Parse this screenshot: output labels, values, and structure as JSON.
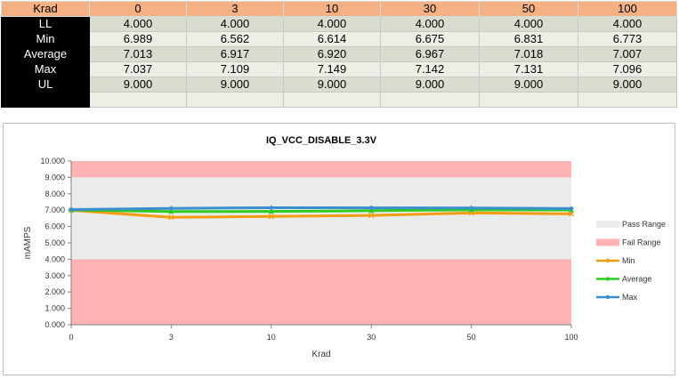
{
  "table": {
    "header_label": "Krad",
    "columns": [
      "0",
      "3",
      "10",
      "30",
      "50",
      "100"
    ],
    "rows": [
      {
        "label": "LL",
        "values": [
          "4.000",
          "4.000",
          "4.000",
          "4.000",
          "4.000",
          "4.000"
        ]
      },
      {
        "label": "Min",
        "values": [
          "6.989",
          "6.562",
          "6.614",
          "6.675",
          "6.831",
          "6.773"
        ]
      },
      {
        "label": "Average",
        "values": [
          "7.013",
          "6.917",
          "6.920",
          "6.967",
          "7.018",
          "7.007"
        ]
      },
      {
        "label": "Max",
        "values": [
          "7.037",
          "7.109",
          "7.149",
          "7.142",
          "7.131",
          "7.096"
        ]
      },
      {
        "label": "UL",
        "values": [
          "9.000",
          "9.000",
          "9.000",
          "9.000",
          "9.000",
          "9.000"
        ]
      },
      {
        "label": "",
        "values": [
          "",
          "",
          "",
          "",
          "",
          ""
        ]
      }
    ]
  },
  "chart_data": {
    "type": "line",
    "title": "IQ_VCC_DISABLE_3.3V",
    "xlabel": "Krad",
    "ylabel": "mAMPS",
    "categories": [
      "0",
      "3",
      "10",
      "30",
      "50",
      "100"
    ],
    "ylim": [
      0,
      10
    ],
    "yticks": [
      "0.000",
      "1.000",
      "2.000",
      "3.000",
      "4.000",
      "5.000",
      "6.000",
      "7.000",
      "8.000",
      "9.000",
      "10.000"
    ],
    "grid": false,
    "legend_position": "right",
    "bands": [
      {
        "name": "Pass Range",
        "from": 4,
        "to": 9,
        "color": "#e9ecea"
      },
      {
        "name": "Fail Range",
        "from": 0,
        "to": 4,
        "color": "#ffb3b3"
      },
      {
        "name": "Fail Range",
        "from": 9,
        "to": 10,
        "color": "#ffb3b3"
      }
    ],
    "series": [
      {
        "name": "Min",
        "color": "#f39c12",
        "values": [
          6.989,
          6.562,
          6.614,
          6.675,
          6.831,
          6.773
        ]
      },
      {
        "name": "Average",
        "color": "#2ecc1f",
        "values": [
          7.013,
          6.917,
          6.92,
          6.967,
          7.018,
          7.007
        ]
      },
      {
        "name": "Max",
        "color": "#3b8ed0",
        "values": [
          7.037,
          7.109,
          7.149,
          7.142,
          7.131,
          7.096
        ]
      }
    ],
    "legend": [
      {
        "name": "Pass Range",
        "kind": "band",
        "color": "#e9ecea"
      },
      {
        "name": "Fail Range",
        "kind": "band",
        "color": "#ffb3b3"
      },
      {
        "name": "Min",
        "kind": "line",
        "color": "#f39c12"
      },
      {
        "name": "Average",
        "kind": "line",
        "color": "#2ecc1f"
      },
      {
        "name": "Max",
        "kind": "line",
        "color": "#3b8ed0"
      }
    ]
  }
}
